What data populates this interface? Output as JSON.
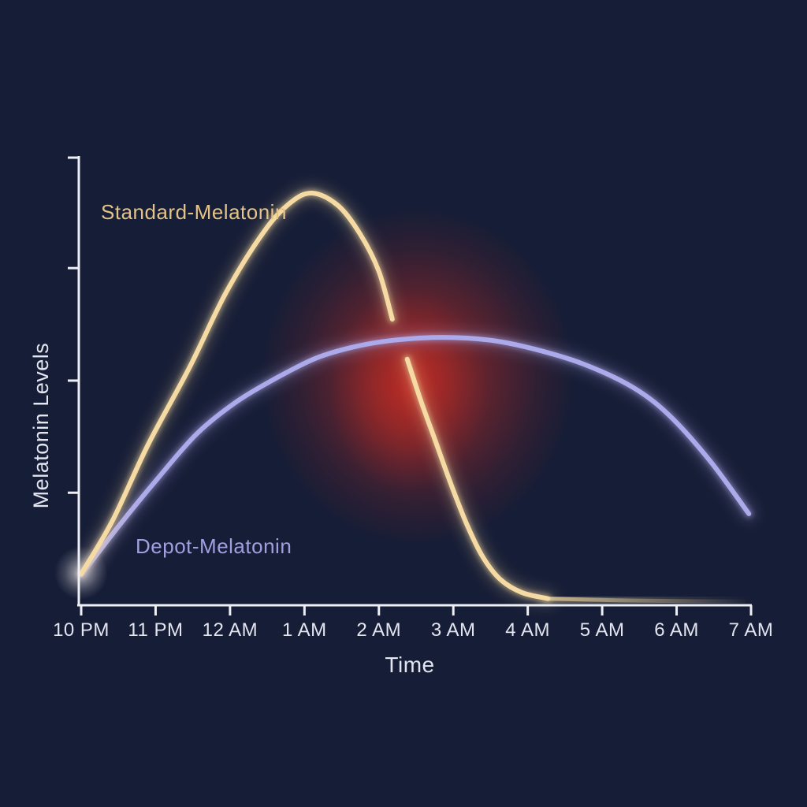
{
  "chart_data": {
    "type": "line",
    "title": "",
    "xlabel": "Time",
    "ylabel": "Melatonin Levels",
    "background_color": "#161d36",
    "axis_color": "#eef0f6",
    "text_color": "#e3e5ef",
    "grid": false,
    "legend_position": "inline-curve-labels",
    "x_tick_labels": [
      "10 PM",
      "11 PM",
      "12 AM",
      "1 AM",
      "2 AM",
      "3 AM",
      "4 AM",
      "5 AM",
      "6 AM",
      "7 AM"
    ],
    "x_tick_hours": [
      22,
      23,
      24,
      25,
      26,
      27,
      28,
      29,
      30,
      31
    ],
    "y_axis_ticks_unlabeled_levels": [
      0.273,
      0.545,
      0.818,
      1.086
    ],
    "y_range_levels": [
      0,
      1.09
    ],
    "series": [
      {
        "name": "Standard-Melatonin",
        "color": "#f5dba3",
        "label_color": "#e4c387",
        "peak_hour": 25.1,
        "peak_level": 1.0,
        "gap_hours": [
          26.18,
          26.38
        ],
        "points_hour_level": {
          "segment_1": [
            [
              22.0,
              0.076
            ],
            [
              22.42,
              0.205
            ],
            [
              22.9,
              0.39
            ],
            [
              23.45,
              0.575
            ],
            [
              23.95,
              0.76
            ],
            [
              24.45,
              0.905
            ],
            [
              24.8,
              0.975
            ],
            [
              25.1,
              1.0
            ],
            [
              25.45,
              0.97
            ],
            [
              25.75,
              0.9
            ],
            [
              26.0,
              0.81
            ],
            [
              26.18,
              0.694
            ]
          ],
          "segment_2": [
            [
              26.38,
              0.597
            ],
            [
              26.57,
              0.493
            ],
            [
              26.76,
              0.398
            ],
            [
              26.97,
              0.293
            ],
            [
              27.18,
              0.197
            ],
            [
              27.39,
              0.119
            ],
            [
              27.63,
              0.063
            ],
            [
              27.92,
              0.031
            ],
            [
              28.27,
              0.016
            ]
          ],
          "tail": [
            [
              28.27,
              0.016
            ],
            [
              29.2,
              0.012
            ],
            [
              30.1,
              0.01
            ],
            [
              30.9,
              0.009
            ]
          ]
        }
      },
      {
        "name": "Depot-Melatonin",
        "color": "#adaaeb",
        "label_color": "#a29fe0",
        "peak_hour": 26.85,
        "peak_level": 0.65,
        "points_hour_level": {
          "segment_1": [
            [
              22.0,
              0.073
            ],
            [
              22.5,
              0.191
            ],
            [
              23.03,
              0.308
            ],
            [
              23.56,
              0.417
            ],
            [
              24.09,
              0.494
            ],
            [
              24.62,
              0.551
            ],
            [
              25.15,
              0.599
            ],
            [
              25.67,
              0.627
            ],
            [
              26.2,
              0.643
            ],
            [
              26.85,
              0.65
            ],
            [
              27.5,
              0.643
            ],
            [
              28.1,
              0.621
            ],
            [
              28.75,
              0.585
            ],
            [
              29.4,
              0.53
            ],
            [
              29.9,
              0.461
            ],
            [
              30.45,
              0.35
            ],
            [
              30.97,
              0.222
            ]
          ]
        }
      }
    ],
    "annotations": [
      {
        "type": "glow",
        "name": "crossover-red-glow",
        "color": "#cf2d22",
        "center_hour": 26.5,
        "center_level": 0.55,
        "meaning": "emphasis where standard release drops past depot curve"
      },
      {
        "type": "glow",
        "name": "curve-start-glow",
        "color": "#ffffff",
        "center_hour": 22.0,
        "center_level": 0.075
      }
    ]
  }
}
